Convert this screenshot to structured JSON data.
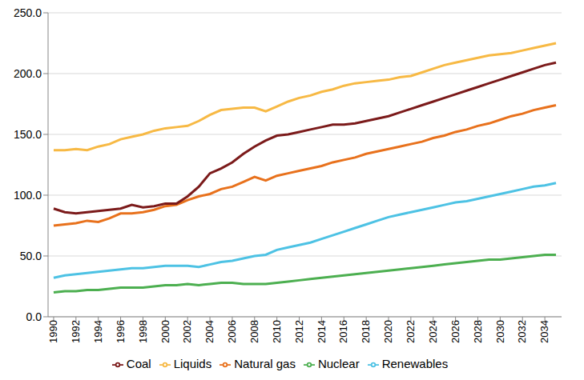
{
  "chart_data": {
    "type": "line",
    "x": [
      1990,
      1991,
      1992,
      1993,
      1994,
      1995,
      1996,
      1997,
      1998,
      1999,
      2000,
      2001,
      2002,
      2003,
      2004,
      2005,
      2006,
      2007,
      2008,
      2009,
      2010,
      2011,
      2012,
      2013,
      2014,
      2015,
      2016,
      2017,
      2018,
      2019,
      2020,
      2021,
      2022,
      2023,
      2024,
      2025,
      2026,
      2027,
      2028,
      2029,
      2030,
      2031,
      2032,
      2033,
      2034,
      2035
    ],
    "xlim": [
      1989.5,
      2035.5
    ],
    "xticks": [
      1990,
      1992,
      1994,
      1996,
      1998,
      2000,
      2002,
      2004,
      2006,
      2008,
      2010,
      2012,
      2014,
      2016,
      2018,
      2020,
      2022,
      2024,
      2026,
      2028,
      2030,
      2032,
      2034
    ],
    "ylim": [
      0,
      250
    ],
    "yticks": [
      {
        "value": 0,
        "label": "0.0"
      },
      {
        "value": 50,
        "label": "50.0"
      },
      {
        "value": 100,
        "label": "100.0"
      },
      {
        "value": 150,
        "label": "150.0"
      },
      {
        "value": 200,
        "label": "200.0"
      },
      {
        "value": 250,
        "label": "250.0"
      }
    ],
    "grid": true,
    "legend": "bottom",
    "series": [
      {
        "name": "Liquids",
        "color": "#f7b944",
        "values": [
          137,
          137,
          138,
          137,
          140,
          142,
          146,
          148,
          150,
          153,
          155,
          156,
          157,
          161,
          166,
          170,
          171,
          172,
          172,
          169,
          173,
          177,
          180,
          182,
          185,
          187,
          190,
          192,
          193,
          194,
          195,
          197,
          198,
          201,
          204,
          207,
          209,
          211,
          213,
          215,
          216,
          217,
          219,
          221,
          223,
          225
        ]
      },
      {
        "name": "Natural gas",
        "color": "#e8711c",
        "values": [
          75,
          76,
          77,
          79,
          78,
          81,
          85,
          85,
          86,
          88,
          91,
          92,
          96,
          99,
          101,
          105,
          107,
          111,
          115,
          112,
          116,
          118,
          120,
          122,
          124,
          127,
          129,
          131,
          134,
          136,
          138,
          140,
          142,
          144,
          147,
          149,
          152,
          154,
          157,
          159,
          162,
          165,
          167,
          170,
          172,
          174
        ]
      },
      {
        "name": "Coal",
        "color": "#7b1a1a",
        "values": [
          89,
          86,
          85,
          86,
          87,
          88,
          89,
          92,
          90,
          91,
          93,
          93,
          99,
          107,
          118,
          122,
          127,
          134,
          140,
          145,
          149,
          150,
          152,
          154,
          156,
          158,
          158,
          159,
          161,
          163,
          165,
          168,
          171,
          174,
          177,
          180,
          183,
          186,
          189,
          192,
          195,
          198,
          201,
          204,
          207,
          209
        ]
      },
      {
        "name": "Nuclear",
        "color": "#4caf50",
        "values": [
          20,
          21,
          21,
          22,
          22,
          23,
          24,
          24,
          24,
          25,
          26,
          26,
          27,
          26,
          27,
          28,
          28,
          27,
          27,
          27,
          28,
          29,
          30,
          31,
          32,
          33,
          34,
          35,
          36,
          37,
          38,
          39,
          40,
          41,
          42,
          43,
          44,
          45,
          46,
          47,
          47,
          48,
          49,
          50,
          51,
          51
        ]
      },
      {
        "name": "Renewables",
        "color": "#4dc2e4",
        "values": [
          32,
          34,
          35,
          36,
          37,
          38,
          39,
          40,
          40,
          41,
          42,
          42,
          42,
          41,
          43,
          45,
          46,
          48,
          50,
          51,
          55,
          57,
          59,
          61,
          64,
          67,
          70,
          73,
          76,
          79,
          82,
          84,
          86,
          88,
          90,
          92,
          94,
          95,
          97,
          99,
          101,
          103,
          105,
          107,
          108,
          110
        ]
      }
    ]
  }
}
